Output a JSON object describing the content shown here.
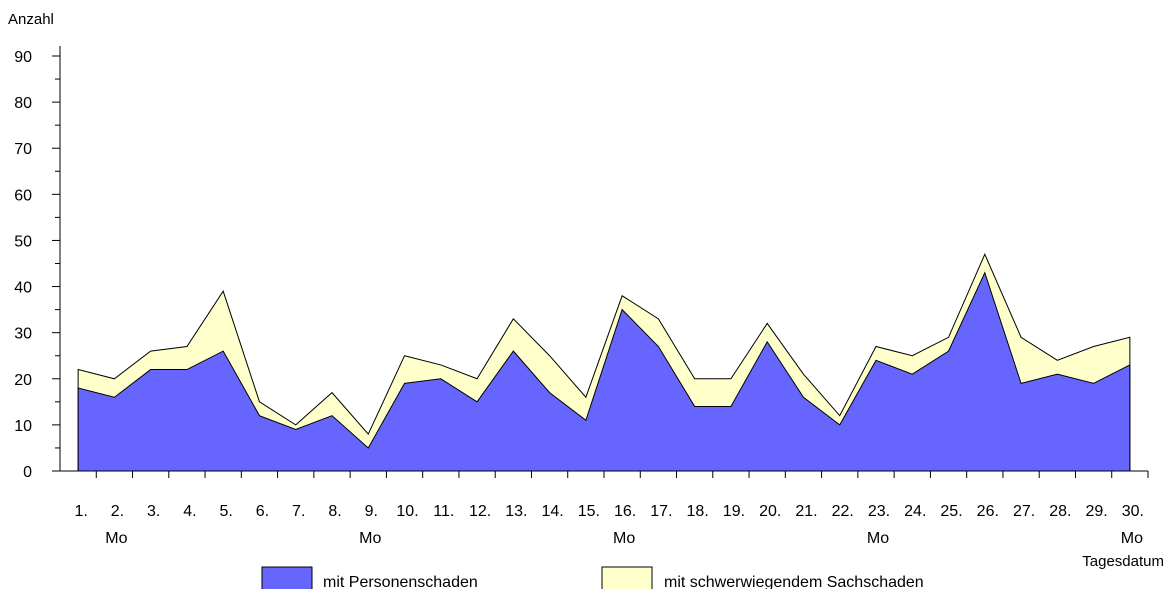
{
  "chart_data": {
    "type": "area",
    "stacked": true,
    "ylabel": "Anzahl",
    "xlabel": "Tagesdatum",
    "ylim": [
      0,
      90
    ],
    "y_ticks": [
      0,
      10,
      20,
      30,
      40,
      50,
      60,
      70,
      80,
      90
    ],
    "categories": [
      "1.",
      "2.",
      "3.",
      "4.",
      "5.",
      "6.",
      "7.",
      "8.",
      "9.",
      "10.",
      "11.",
      "12.",
      "13.",
      "14.",
      "15.",
      "16.",
      "17.",
      "18.",
      "19.",
      "20.",
      "21.",
      "22.",
      "23.",
      "24.",
      "25.",
      "26.",
      "27.",
      "28.",
      "29.",
      "30."
    ],
    "weekday_labels": [
      {
        "day": "2.",
        "text": "Mo"
      },
      {
        "day": "9.",
        "text": "Mo"
      },
      {
        "day": "16.",
        "text": "Mo"
      },
      {
        "day": "23.",
        "text": "Mo"
      },
      {
        "day": "30.",
        "text": "Mo"
      }
    ],
    "series": [
      {
        "name": "mit Personenschaden",
        "color": "#6666ff",
        "values": [
          18,
          16,
          22,
          22,
          26,
          12,
          9,
          12,
          5,
          19,
          20,
          15,
          26,
          17,
          11,
          35,
          27,
          14,
          14,
          28,
          16,
          10,
          24,
          21,
          26,
          43,
          19,
          21,
          19,
          23
        ]
      },
      {
        "name": "mit schwerwiegendem Sachschaden",
        "color": "#ffffcc",
        "values": [
          4,
          4,
          4,
          5,
          13,
          3,
          1,
          5,
          3,
          6,
          3,
          5,
          7,
          8,
          5,
          3,
          6,
          6,
          6,
          4,
          5,
          2,
          3,
          4,
          3,
          4,
          10,
          3,
          8,
          6
        ]
      }
    ],
    "grid": false,
    "legend_position": "bottom"
  }
}
